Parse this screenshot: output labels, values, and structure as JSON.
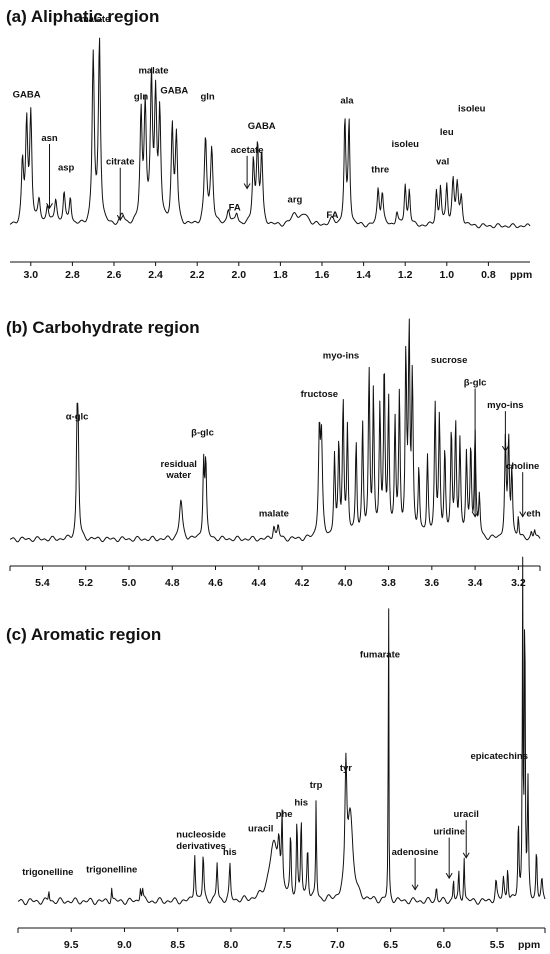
{
  "chart_data": [
    {
      "type": "line",
      "title": "(a) Aliphatic region",
      "xlabel": "ppm",
      "xlim": [
        3.1,
        0.6
      ],
      "ylim": [
        0,
        1
      ],
      "x_ticks": [
        "3.0",
        "2.8",
        "2.6",
        "2.4",
        "2.2",
        "2.0",
        "1.8",
        "1.6",
        "1.4",
        "1.2",
        "1.0",
        "0.8"
      ],
      "baseline": 0.05,
      "peaks": [
        {
          "ppm": 3.02,
          "h": 0.5,
          "w": 0.006
        },
        {
          "ppm": 3.0,
          "h": 0.55,
          "w": 0.006
        },
        {
          "ppm": 3.04,
          "h": 0.3,
          "w": 0.006
        },
        {
          "ppm": 2.96,
          "h": 0.12,
          "w": 0.007
        },
        {
          "ppm": 2.92,
          "h": 0.1,
          "w": 0.007
        },
        {
          "ppm": 2.88,
          "h": 0.13,
          "w": 0.007
        },
        {
          "ppm": 2.84,
          "h": 0.16,
          "w": 0.006
        },
        {
          "ppm": 2.81,
          "h": 0.14,
          "w": 0.006
        },
        {
          "ppm": 2.7,
          "h": 0.85,
          "w": 0.006
        },
        {
          "ppm": 2.67,
          "h": 0.93,
          "w": 0.006
        },
        {
          "ppm": 2.56,
          "h": 0.05,
          "w": 0.012
        },
        {
          "ppm": 2.47,
          "h": 0.55,
          "w": 0.006
        },
        {
          "ppm": 2.45,
          "h": 0.58,
          "w": 0.006
        },
        {
          "ppm": 2.42,
          "h": 0.7,
          "w": 0.006
        },
        {
          "ppm": 2.4,
          "h": 0.62,
          "w": 0.006
        },
        {
          "ppm": 2.38,
          "h": 0.55,
          "w": 0.006
        },
        {
          "ppm": 2.32,
          "h": 0.48,
          "w": 0.006
        },
        {
          "ppm": 2.3,
          "h": 0.44,
          "w": 0.006
        },
        {
          "ppm": 2.16,
          "h": 0.43,
          "w": 0.007
        },
        {
          "ppm": 2.13,
          "h": 0.38,
          "w": 0.007
        },
        {
          "ppm": 2.05,
          "h": 0.08,
          "w": 0.008
        },
        {
          "ppm": 2.01,
          "h": 0.06,
          "w": 0.008
        },
        {
          "ppm": 1.93,
          "h": 0.32,
          "w": 0.006
        },
        {
          "ppm": 1.91,
          "h": 0.38,
          "w": 0.006
        },
        {
          "ppm": 1.89,
          "h": 0.34,
          "w": 0.006
        },
        {
          "ppm": 1.73,
          "h": 0.06,
          "w": 0.02
        },
        {
          "ppm": 1.68,
          "h": 0.05,
          "w": 0.02
        },
        {
          "ppm": 1.55,
          "h": 0.03,
          "w": 0.015
        },
        {
          "ppm": 1.49,
          "h": 0.52,
          "w": 0.005
        },
        {
          "ppm": 1.47,
          "h": 0.52,
          "w": 0.005
        },
        {
          "ppm": 1.33,
          "h": 0.18,
          "w": 0.006
        },
        {
          "ppm": 1.31,
          "h": 0.16,
          "w": 0.006
        },
        {
          "ppm": 1.24,
          "h": 0.07,
          "w": 0.006
        },
        {
          "ppm": 1.2,
          "h": 0.2,
          "w": 0.005
        },
        {
          "ppm": 1.18,
          "h": 0.18,
          "w": 0.005
        },
        {
          "ppm": 1.05,
          "h": 0.17,
          "w": 0.005
        },
        {
          "ppm": 1.03,
          "h": 0.19,
          "w": 0.005
        },
        {
          "ppm": 1.0,
          "h": 0.2,
          "w": 0.005
        },
        {
          "ppm": 0.97,
          "h": 0.22,
          "w": 0.006
        },
        {
          "ppm": 0.95,
          "h": 0.2,
          "w": 0.006
        },
        {
          "ppm": 0.93,
          "h": 0.14,
          "w": 0.006
        }
      ],
      "annotations": [
        {
          "text": "GABA",
          "ppm": 3.02,
          "h": 0.7
        },
        {
          "text": "asn",
          "ppm": 2.91,
          "h": 0.48,
          "arrow_to": 0.14
        },
        {
          "text": "asp",
          "ppm": 2.83,
          "h": 0.33
        },
        {
          "text": "malate",
          "ppm": 2.69,
          "h": 1.08
        },
        {
          "text": "citrate",
          "ppm": 2.57,
          "h": 0.36,
          "arrow_to": 0.08
        },
        {
          "text": "gln",
          "ppm": 2.47,
          "h": 0.69
        },
        {
          "text": "malate",
          "ppm": 2.41,
          "h": 0.82
        },
        {
          "text": "GABA",
          "ppm": 2.31,
          "h": 0.72
        },
        {
          "text": "gln",
          "ppm": 2.15,
          "h": 0.69
        },
        {
          "text": "acetate",
          "ppm": 1.96,
          "h": 0.42,
          "arrow_to": 0.24
        },
        {
          "text": "GABA",
          "ppm": 1.89,
          "h": 0.54
        },
        {
          "text": "FA",
          "ppm": 2.02,
          "h": 0.13
        },
        {
          "text": "arg",
          "ppm": 1.73,
          "h": 0.17
        },
        {
          "text": "FA",
          "ppm": 1.55,
          "h": 0.09
        },
        {
          "text": "ala",
          "ppm": 1.48,
          "h": 0.67
        },
        {
          "text": "thre",
          "ppm": 1.32,
          "h": 0.32
        },
        {
          "text": "isoleu",
          "ppm": 1.2,
          "h": 0.45
        },
        {
          "text": "leu",
          "ppm": 1.0,
          "h": 0.51
        },
        {
          "text": "val",
          "ppm": 1.02,
          "h": 0.36
        },
        {
          "text": "isoleu",
          "ppm": 0.88,
          "h": 0.63
        }
      ]
    },
    {
      "type": "line",
      "title": "(b) Carbohydrate region",
      "xlabel": "",
      "xlim": [
        5.55,
        3.1
      ],
      "ylim": [
        0,
        1
      ],
      "x_ticks": [
        "5.4",
        "5.2",
        "5.0",
        "4.8",
        "4.6",
        "4.4",
        "4.2",
        "4.0",
        "3.8",
        "3.6",
        "3.4",
        "3.2"
      ],
      "baseline": 0.03,
      "peaks": [
        {
          "ppm": 5.24,
          "h": 0.43,
          "w": 0.004
        },
        {
          "ppm": 5.235,
          "h": 0.41,
          "w": 0.004
        },
        {
          "ppm": 4.76,
          "h": 0.17,
          "w": 0.008
        },
        {
          "ppm": 4.655,
          "h": 0.34,
          "w": 0.004
        },
        {
          "ppm": 4.645,
          "h": 0.33,
          "w": 0.004
        },
        {
          "ppm": 4.33,
          "h": 0.06,
          "w": 0.005
        },
        {
          "ppm": 4.31,
          "h": 0.06,
          "w": 0.005
        },
        {
          "ppm": 4.12,
          "h": 0.46,
          "w": 0.005
        },
        {
          "ppm": 4.11,
          "h": 0.4,
          "w": 0.005
        },
        {
          "ppm": 4.05,
          "h": 0.36,
          "w": 0.004
        },
        {
          "ppm": 4.03,
          "h": 0.4,
          "w": 0.004
        },
        {
          "ppm": 4.01,
          "h": 0.6,
          "w": 0.004
        },
        {
          "ppm": 3.99,
          "h": 0.48,
          "w": 0.004
        },
        {
          "ppm": 3.95,
          "h": 0.42,
          "w": 0.004
        },
        {
          "ppm": 3.92,
          "h": 0.5,
          "w": 0.004
        },
        {
          "ppm": 3.89,
          "h": 0.72,
          "w": 0.004
        },
        {
          "ppm": 3.87,
          "h": 0.64,
          "w": 0.004
        },
        {
          "ppm": 3.84,
          "h": 0.56,
          "w": 0.004
        },
        {
          "ppm": 3.82,
          "h": 0.74,
          "w": 0.004
        },
        {
          "ppm": 3.8,
          "h": 0.6,
          "w": 0.004
        },
        {
          "ppm": 3.77,
          "h": 0.5,
          "w": 0.004
        },
        {
          "ppm": 3.75,
          "h": 0.62,
          "w": 0.004
        },
        {
          "ppm": 3.72,
          "h": 0.78,
          "w": 0.004
        },
        {
          "ppm": 3.705,
          "h": 0.88,
          "w": 0.004
        },
        {
          "ppm": 3.69,
          "h": 0.7,
          "w": 0.004
        },
        {
          "ppm": 3.66,
          "h": 0.3,
          "w": 0.004
        },
        {
          "ppm": 3.62,
          "h": 0.36,
          "w": 0.004
        },
        {
          "ppm": 3.585,
          "h": 0.58,
          "w": 0.004
        },
        {
          "ppm": 3.565,
          "h": 0.52,
          "w": 0.004
        },
        {
          "ppm": 3.54,
          "h": 0.38,
          "w": 0.004
        },
        {
          "ppm": 3.51,
          "h": 0.46,
          "w": 0.004
        },
        {
          "ppm": 3.49,
          "h": 0.5,
          "w": 0.004
        },
        {
          "ppm": 3.47,
          "h": 0.42,
          "w": 0.004
        },
        {
          "ppm": 3.44,
          "h": 0.36,
          "w": 0.004
        },
        {
          "ppm": 3.42,
          "h": 0.4,
          "w": 0.004
        },
        {
          "ppm": 3.4,
          "h": 0.46,
          "w": 0.004
        },
        {
          "ppm": 3.38,
          "h": 0.18,
          "w": 0.004
        },
        {
          "ppm": 3.26,
          "h": 0.44,
          "w": 0.004
        },
        {
          "ppm": 3.245,
          "h": 0.42,
          "w": 0.004
        },
        {
          "ppm": 3.23,
          "h": 0.3,
          "w": 0.004
        },
        {
          "ppm": 3.2,
          "h": 0.1,
          "w": 0.003
        },
        {
          "ppm": 3.14,
          "h": 0.03,
          "w": 0.004
        },
        {
          "ppm": 3.125,
          "h": 0.04,
          "w": 0.004
        }
      ],
      "annotations": [
        {
          "text": "α-glc",
          "ppm": 5.24,
          "h": 0.56
        },
        {
          "text": "residual",
          "ppm": 4.77,
          "h": 0.35
        },
        {
          "text": "water",
          "ppm": 4.77,
          "h": 0.3
        },
        {
          "text": "β-glc",
          "ppm": 4.66,
          "h": 0.49
        },
        {
          "text": "malate",
          "ppm": 4.33,
          "h": 0.13
        },
        {
          "text": "fructose",
          "ppm": 4.12,
          "h": 0.66
        },
        {
          "text": "myo-ins",
          "ppm": 4.02,
          "h": 0.83
        },
        {
          "text": "sucrose",
          "ppm": 3.52,
          "h": 0.81
        },
        {
          "text": "β-glc",
          "ppm": 3.4,
          "h": 0.71,
          "arrow_to": 0.13
        },
        {
          "text": "myo-ins",
          "ppm": 3.26,
          "h": 0.61,
          "arrow_to": 0.42
        },
        {
          "text": "choline",
          "ppm": 3.18,
          "h": 0.34,
          "arrow_to": 0.13
        },
        {
          "text": "eth",
          "ppm": 3.13,
          "h": 0.13
        }
      ]
    },
    {
      "type": "line",
      "title": "(c) Aromatic region",
      "xlabel": "ppm",
      "xlim": [
        10.0,
        5.05
      ],
      "ylim": [
        0,
        1
      ],
      "x_ticks": [
        "9.5",
        "9.0",
        "8.5",
        "8.0",
        "7.5",
        "7.0",
        "6.5",
        "6.0",
        "5.5"
      ],
      "baseline": 0.03,
      "peaks": [
        {
          "ppm": 9.71,
          "h": 0.04,
          "w": 0.005
        },
        {
          "ppm": 9.12,
          "h": 0.05,
          "w": 0.005
        },
        {
          "ppm": 8.85,
          "h": 0.05,
          "w": 0.006
        },
        {
          "ppm": 8.83,
          "h": 0.04,
          "w": 0.006
        },
        {
          "ppm": 8.34,
          "h": 0.17,
          "w": 0.007
        },
        {
          "ppm": 8.26,
          "h": 0.16,
          "w": 0.007
        },
        {
          "ppm": 8.13,
          "h": 0.13,
          "w": 0.007
        },
        {
          "ppm": 8.01,
          "h": 0.12,
          "w": 0.007
        },
        {
          "ppm": 7.6,
          "h": 0.19,
          "w": 0.05
        },
        {
          "ppm": 7.55,
          "h": 0.14,
          "w": 0.012
        },
        {
          "ppm": 7.52,
          "h": 0.24,
          "w": 0.006
        },
        {
          "ppm": 7.44,
          "h": 0.22,
          "w": 0.006
        },
        {
          "ppm": 7.38,
          "h": 0.27,
          "w": 0.006
        },
        {
          "ppm": 7.34,
          "h": 0.28,
          "w": 0.006
        },
        {
          "ppm": 7.28,
          "h": 0.18,
          "w": 0.008
        },
        {
          "ppm": 7.2,
          "h": 0.34,
          "w": 0.005
        },
        {
          "ppm": 6.92,
          "h": 0.4,
          "w": 0.01
        },
        {
          "ppm": 6.88,
          "h": 0.3,
          "w": 0.03
        },
        {
          "ppm": 6.52,
          "h": 1.25,
          "w": 0.003
        },
        {
          "ppm": 6.07,
          "h": 0.05,
          "w": 0.006
        },
        {
          "ppm": 5.91,
          "h": 0.08,
          "w": 0.005
        },
        {
          "ppm": 5.86,
          "h": 0.1,
          "w": 0.005
        },
        {
          "ppm": 5.81,
          "h": 0.16,
          "w": 0.005
        },
        {
          "ppm": 5.51,
          "h": 0.07,
          "w": 0.008
        },
        {
          "ppm": 5.44,
          "h": 0.08,
          "w": 0.008
        },
        {
          "ppm": 5.4,
          "h": 0.12,
          "w": 0.006
        },
        {
          "ppm": 5.3,
          "h": 0.28,
          "w": 0.006
        },
        {
          "ppm": 5.26,
          "h": 1.2,
          "w": 0.004
        },
        {
          "ppm": 5.24,
          "h": 1.2,
          "w": 0.004
        },
        {
          "ppm": 5.21,
          "h": 0.4,
          "w": 0.006
        },
        {
          "ppm": 5.13,
          "h": 0.18,
          "w": 0.006
        },
        {
          "ppm": 5.08,
          "h": 0.07,
          "w": 0.008
        }
      ],
      "annotations": [
        {
          "text": "trigonelline",
          "ppm": 9.72,
          "h": 0.12
        },
        {
          "text": "trigonelline",
          "ppm": 9.12,
          "h": 0.13
        },
        {
          "text": "nucleoside",
          "ppm": 8.28,
          "h": 0.25
        },
        {
          "text": "derivatives",
          "ppm": 8.28,
          "h": 0.21
        },
        {
          "text": "his",
          "ppm": 8.01,
          "h": 0.19
        },
        {
          "text": "uracil",
          "ppm": 7.72,
          "h": 0.27
        },
        {
          "text": "phe",
          "ppm": 7.5,
          "h": 0.32
        },
        {
          "text": "his",
          "ppm": 7.34,
          "h": 0.36
        },
        {
          "text": "trp",
          "ppm": 7.2,
          "h": 0.42
        },
        {
          "text": "tyr",
          "ppm": 6.92,
          "h": 0.48
        },
        {
          "text": "fumarate",
          "ppm": 6.6,
          "h": 0.87
        },
        {
          "text": "adenosine",
          "ppm": 6.27,
          "h": 0.19,
          "arrow_to": 0.07
        },
        {
          "text": "uridine",
          "ppm": 5.95,
          "h": 0.26,
          "arrow_to": 0.11
        },
        {
          "text": "uracil",
          "ppm": 5.79,
          "h": 0.32,
          "arrow_to": 0.18
        },
        {
          "text": "epicatechins",
          "ppm": 5.48,
          "h": 0.52
        }
      ]
    }
  ]
}
